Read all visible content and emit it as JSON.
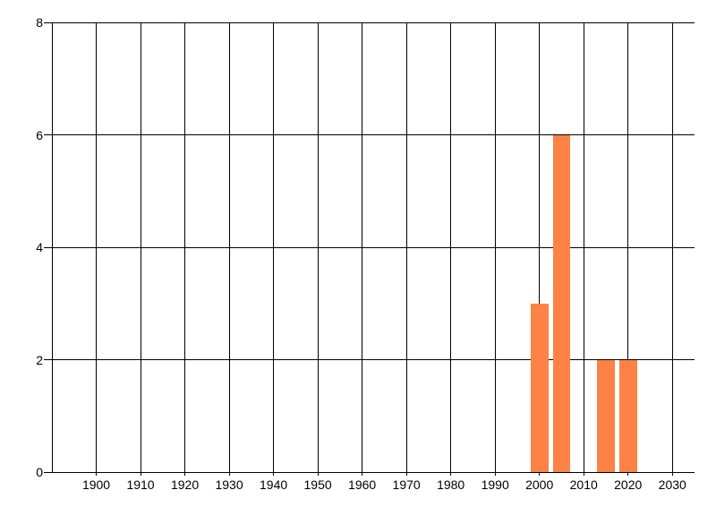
{
  "chart_data": {
    "type": "bar",
    "title": "",
    "xlabel": "",
    "ylabel": "",
    "x_tick_labels": [
      "1900",
      "1910",
      "1920",
      "1930",
      "1940",
      "1950",
      "1960",
      "1970",
      "1980",
      "1990",
      "2000",
      "2010",
      "2020",
      "2030"
    ],
    "x_tick_values": [
      1900,
      1910,
      1920,
      1930,
      1940,
      1950,
      1960,
      1970,
      1980,
      1990,
      2000,
      2010,
      2020,
      2030
    ],
    "y_tick_labels": [
      "0",
      "2",
      "4",
      "6",
      "8"
    ],
    "y_tick_values": [
      0,
      2,
      4,
      6,
      8
    ],
    "xlim": [
      1890,
      2035
    ],
    "ylim": [
      0,
      8
    ],
    "grid": "on",
    "legend": false,
    "bin_width_years": 5,
    "bar_width_years": 4,
    "bars": [
      {
        "year": 2000,
        "value": 3
      },
      {
        "year": 2005,
        "value": 6
      },
      {
        "year": 2015,
        "value": 2
      },
      {
        "year": 2020,
        "value": 2
      }
    ],
    "colors": {
      "bar": "#fc8245",
      "grid": "#000000",
      "text": "#000000",
      "background": "#ffffff"
    }
  }
}
